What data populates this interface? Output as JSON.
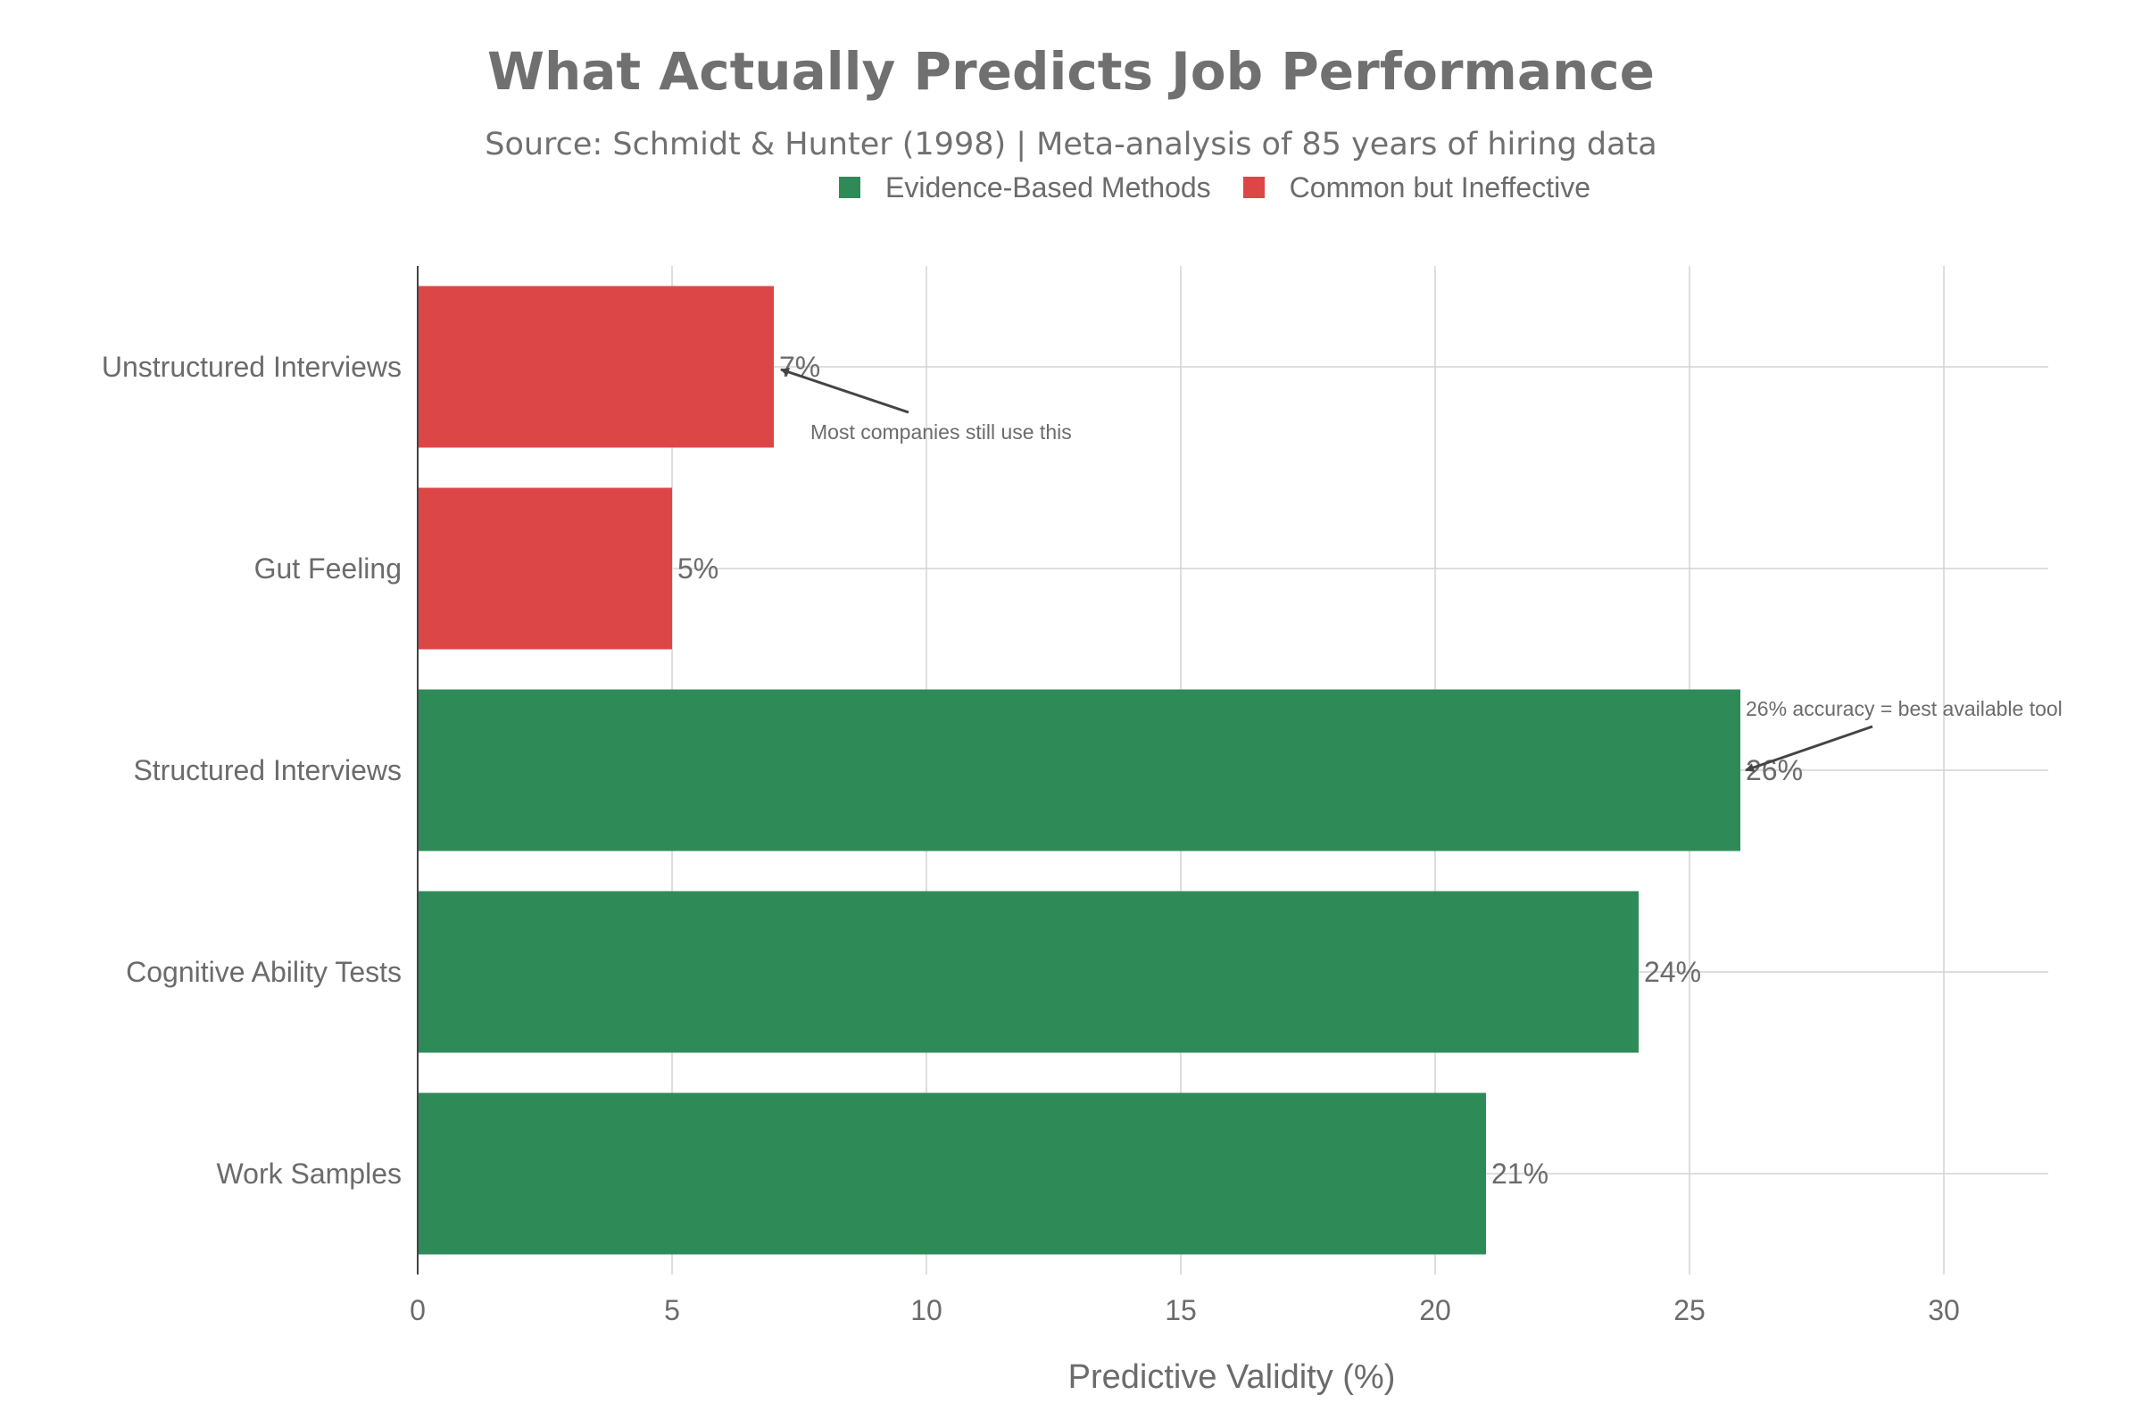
{
  "chart_data": {
    "type": "bar",
    "orientation": "horizontal",
    "title": "What Actually Predicts Job Performance",
    "subtitle": "Source: Schmidt & Hunter (1998) | Meta-analysis of 85 years of hiring data",
    "xlabel": "Predictive Validity (%)",
    "ylabel": "",
    "xlim": [
      0,
      32
    ],
    "xticks": [
      "0",
      "5",
      "10",
      "15",
      "20",
      "25",
      "30"
    ],
    "grid": true,
    "legend_position": "top-right",
    "legend": [
      {
        "name": "Evidence-Based Methods",
        "color": "#2e8b57"
      },
      {
        "name": "Common but Ineffective",
        "color": "#dc4646"
      }
    ],
    "bars": [
      {
        "category": "Unstructured Interviews",
        "value": 7,
        "label": "7%",
        "group": "Common but Ineffective",
        "color": "#dc4646"
      },
      {
        "category": "Gut Feeling",
        "value": 5,
        "label": "5%",
        "group": "Common but Ineffective",
        "color": "#dc4646"
      },
      {
        "category": "Structured Interviews",
        "value": 26,
        "label": "26%",
        "group": "Evidence-Based Methods",
        "color": "#2e8b57"
      },
      {
        "category": "Cognitive Ability Tests",
        "value": 24,
        "label": "24%",
        "group": "Evidence-Based Methods",
        "color": "#2e8b57"
      },
      {
        "category": "Work Samples",
        "value": 21,
        "label": "21%",
        "group": "Evidence-Based Methods",
        "color": "#2e8b57"
      }
    ],
    "annotations": [
      {
        "text": "Most companies still use this",
        "target_category": "Unstructured Interviews",
        "target_value": 7
      },
      {
        "text": "26% accuracy = best available tool",
        "target_category": "Structured Interviews",
        "target_value": 26
      }
    ]
  }
}
